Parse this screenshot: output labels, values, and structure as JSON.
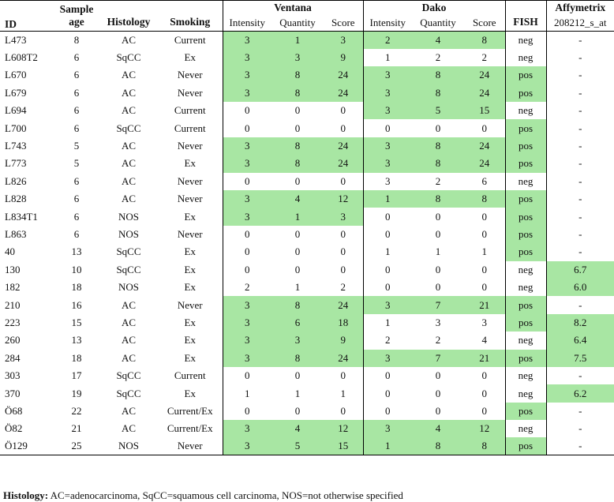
{
  "headers": {
    "id": "ID",
    "sample_age_1": "Sample",
    "sample_age_2": "age",
    "histology": "Histology",
    "smoking": "Smoking",
    "ventana": "Ventana",
    "dako": "Dako",
    "fish": "FISH",
    "affymetrix": "Affymetrix",
    "affymetrix_probe": "208212_s_at",
    "intensity": "Intensity",
    "quantity": "Quantity",
    "score": "Score"
  },
  "highlight_color": "#a8e6a3",
  "rows": [
    {
      "id": "L473",
      "age": "8",
      "hist": "AC",
      "smoke": "Current",
      "vi": "3",
      "vq": "1",
      "vs": "3",
      "di": "2",
      "dq": "4",
      "ds": "8",
      "fish": "neg",
      "affy": "-",
      "gv": true,
      "gd": true,
      "gf": false,
      "ga": false
    },
    {
      "id": "L608T2",
      "age": "6",
      "hist": "SqCC",
      "smoke": "Ex",
      "vi": "3",
      "vq": "3",
      "vs": "9",
      "di": "1",
      "dq": "2",
      "ds": "2",
      "fish": "neg",
      "affy": "-",
      "gv": true,
      "gd": false,
      "gf": false,
      "ga": false
    },
    {
      "id": "L670",
      "age": "6",
      "hist": "AC",
      "smoke": "Never",
      "vi": "3",
      "vq": "8",
      "vs": "24",
      "di": "3",
      "dq": "8",
      "ds": "24",
      "fish": "pos",
      "affy": "-",
      "gv": true,
      "gd": true,
      "gf": true,
      "ga": false
    },
    {
      "id": "L679",
      "age": "6",
      "hist": "AC",
      "smoke": "Never",
      "vi": "3",
      "vq": "8",
      "vs": "24",
      "di": "3",
      "dq": "8",
      "ds": "24",
      "fish": "pos",
      "affy": "-",
      "gv": true,
      "gd": true,
      "gf": true,
      "ga": false
    },
    {
      "id": "L694",
      "age": "6",
      "hist": "AC",
      "smoke": "Current",
      "vi": "0",
      "vq": "0",
      "vs": "0",
      "di": "3",
      "dq": "5",
      "ds": "15",
      "fish": "neg",
      "affy": "-",
      "gv": false,
      "gd": true,
      "gf": false,
      "ga": false
    },
    {
      "id": "L700",
      "age": "6",
      "hist": "SqCC",
      "smoke": "Current",
      "vi": "0",
      "vq": "0",
      "vs": "0",
      "di": "0",
      "dq": "0",
      "ds": "0",
      "fish": "pos",
      "affy": "-",
      "gv": false,
      "gd": false,
      "gf": true,
      "ga": false
    },
    {
      "id": "L743",
      "age": "5",
      "hist": "AC",
      "smoke": "Never",
      "vi": "3",
      "vq": "8",
      "vs": "24",
      "di": "3",
      "dq": "8",
      "ds": "24",
      "fish": "pos",
      "affy": "-",
      "gv": true,
      "gd": true,
      "gf": true,
      "ga": false
    },
    {
      "id": "L773",
      "age": "5",
      "hist": "AC",
      "smoke": "Ex",
      "vi": "3",
      "vq": "8",
      "vs": "24",
      "di": "3",
      "dq": "8",
      "ds": "24",
      "fish": "pos",
      "affy": "-",
      "gv": true,
      "gd": true,
      "gf": true,
      "ga": false
    },
    {
      "id": "L826",
      "age": "6",
      "hist": "AC",
      "smoke": "Never",
      "vi": "0",
      "vq": "0",
      "vs": "0",
      "di": "3",
      "dq": "2",
      "ds": "6",
      "fish": "neg",
      "affy": "-",
      "gv": false,
      "gd": false,
      "gf": false,
      "ga": false
    },
    {
      "id": "L828",
      "age": "6",
      "hist": "AC",
      "smoke": "Never",
      "vi": "3",
      "vq": "4",
      "vs": "12",
      "di": "1",
      "dq": "8",
      "ds": "8",
      "fish": "pos",
      "affy": "-",
      "gv": true,
      "gd": true,
      "gf": true,
      "ga": false
    },
    {
      "id": "L834T1",
      "age": "6",
      "hist": "NOS",
      "smoke": "Ex",
      "vi": "3",
      "vq": "1",
      "vs": "3",
      "di": "0",
      "dq": "0",
      "ds": "0",
      "fish": "pos",
      "affy": "-",
      "gv": true,
      "gd": false,
      "gf": true,
      "ga": false
    },
    {
      "id": "L863",
      "age": "6",
      "hist": "NOS",
      "smoke": "Never",
      "vi": "0",
      "vq": "0",
      "vs": "0",
      "di": "0",
      "dq": "0",
      "ds": "0",
      "fish": "pos",
      "affy": "-",
      "gv": false,
      "gd": false,
      "gf": true,
      "ga": false
    },
    {
      "id": "40",
      "age": "13",
      "hist": "SqCC",
      "smoke": "Ex",
      "vi": "0",
      "vq": "0",
      "vs": "0",
      "di": "1",
      "dq": "1",
      "ds": "1",
      "fish": "pos",
      "affy": "-",
      "gv": false,
      "gd": false,
      "gf": true,
      "ga": false
    },
    {
      "id": "130",
      "age": "10",
      "hist": "SqCC",
      "smoke": "Ex",
      "vi": "0",
      "vq": "0",
      "vs": "0",
      "di": "0",
      "dq": "0",
      "ds": "0",
      "fish": "neg",
      "affy": "6.7",
      "gv": false,
      "gd": false,
      "gf": false,
      "ga": true
    },
    {
      "id": "182",
      "age": "18",
      "hist": "NOS",
      "smoke": "Ex",
      "vi": "2",
      "vq": "1",
      "vs": "2",
      "di": "0",
      "dq": "0",
      "ds": "0",
      "fish": "neg",
      "affy": "6.0",
      "gv": false,
      "gd": false,
      "gf": false,
      "ga": true
    },
    {
      "id": "210",
      "age": "16",
      "hist": "AC",
      "smoke": "Never",
      "vi": "3",
      "vq": "8",
      "vs": "24",
      "di": "3",
      "dq": "7",
      "ds": "21",
      "fish": "pos",
      "affy": "-",
      "gv": true,
      "gd": true,
      "gf": true,
      "ga": false
    },
    {
      "id": "223",
      "age": "15",
      "hist": "AC",
      "smoke": "Ex",
      "vi": "3",
      "vq": "6",
      "vs": "18",
      "di": "1",
      "dq": "3",
      "ds": "3",
      "fish": "pos",
      "affy": "8.2",
      "gv": true,
      "gd": false,
      "gf": true,
      "ga": true
    },
    {
      "id": "260",
      "age": "13",
      "hist": "AC",
      "smoke": "Ex",
      "vi": "3",
      "vq": "3",
      "vs": "9",
      "di": "2",
      "dq": "2",
      "ds": "4",
      "fish": "neg",
      "affy": "6.4",
      "gv": true,
      "gd": false,
      "gf": false,
      "ga": true
    },
    {
      "id": "284",
      "age": "18",
      "hist": "AC",
      "smoke": "Ex",
      "vi": "3",
      "vq": "8",
      "vs": "24",
      "di": "3",
      "dq": "7",
      "ds": "21",
      "fish": "pos",
      "affy": "7.5",
      "gv": true,
      "gd": true,
      "gf": true,
      "ga": true
    },
    {
      "id": "303",
      "age": "17",
      "hist": "SqCC",
      "smoke": "Current",
      "vi": "0",
      "vq": "0",
      "vs": "0",
      "di": "0",
      "dq": "0",
      "ds": "0",
      "fish": "neg",
      "affy": "-",
      "gv": false,
      "gd": false,
      "gf": false,
      "ga": false
    },
    {
      "id": "370",
      "age": "19",
      "hist": "SqCC",
      "smoke": "Ex",
      "vi": "1",
      "vq": "1",
      "vs": "1",
      "di": "0",
      "dq": "0",
      "ds": "0",
      "fish": "neg",
      "affy": "6.2",
      "gv": false,
      "gd": false,
      "gf": false,
      "ga": true
    },
    {
      "id": "Ö68",
      "age": "22",
      "hist": "AC",
      "smoke": "Current/Ex",
      "vi": "0",
      "vq": "0",
      "vs": "0",
      "di": "0",
      "dq": "0",
      "ds": "0",
      "fish": "pos",
      "affy": "-",
      "gv": false,
      "gd": false,
      "gf": true,
      "ga": false
    },
    {
      "id": "Ö82",
      "age": "21",
      "hist": "AC",
      "smoke": "Current/Ex",
      "vi": "3",
      "vq": "4",
      "vs": "12",
      "di": "3",
      "dq": "4",
      "ds": "12",
      "fish": "neg",
      "affy": "-",
      "gv": true,
      "gd": true,
      "gf": false,
      "ga": false
    },
    {
      "id": "Ö129",
      "age": "25",
      "hist": "NOS",
      "smoke": "Never",
      "vi": "3",
      "vq": "5",
      "vs": "15",
      "di": "1",
      "dq": "8",
      "ds": "8",
      "fish": "pos",
      "affy": "-",
      "gv": true,
      "gd": true,
      "gf": true,
      "ga": false
    }
  ],
  "footnote": {
    "label": "Histology:",
    "text": " AC=adenocarcinoma, SqCC=squamous cell carcinoma, NOS=not otherwise specified"
  }
}
